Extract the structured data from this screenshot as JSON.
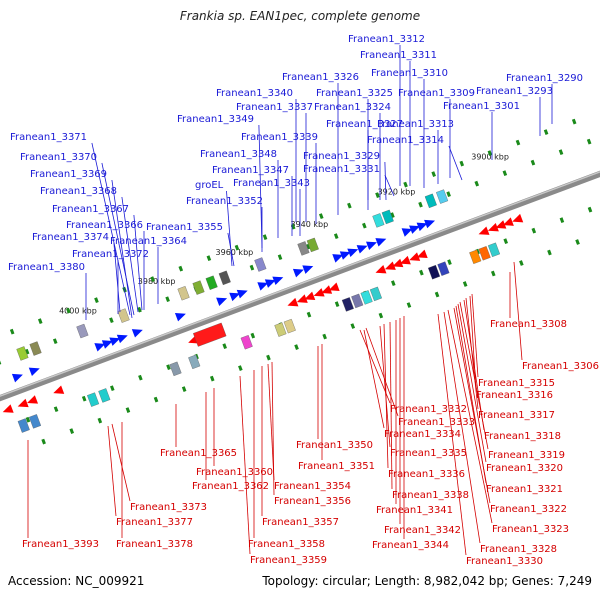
{
  "title": "Frankia sp. EAN1pec, complete genome",
  "footer": {
    "accession": "Accession: NC_009921",
    "summary": "Topology: circular; Length: 8,982,042 bp; Genes: 7,249"
  },
  "colors": {
    "upper_label": "#1a1ad6",
    "lower_label": "#d40000",
    "upper_arrow": "#0019ff",
    "lower_arrow": "#ff0000",
    "axis": "#8a8a8a",
    "tick": "#1a8a1a"
  },
  "ticks": [
    "4000 kbp",
    "3980 kbp",
    "3960 kbp",
    "3940 kbp",
    "3920 kbp",
    "3900 kbp"
  ],
  "upper_labels": [
    "Franean1_3312",
    "Franean1_3311",
    "Franean1_3310",
    "Franean1_3290",
    "Franean1_3326",
    "Franean1_3309",
    "Franean1_3293",
    "Franean1_3340",
    "Franean1_3325",
    "Franean1_3337",
    "Franean1_3324",
    "Franean1_3301",
    "Franean1_3349",
    "Franean1_3327",
    "Franean1_3313",
    "Franean1_3371",
    "Franean1_3339",
    "Franean1_3314",
    "Franean1_3348",
    "Franean1_3329",
    "Franean1_3370",
    "Franean1_3347",
    "Franean1_3331",
    "Franean1_3369",
    "Franean1_3343",
    "groEL",
    "Franean1_3368",
    "Franean1_3352",
    "Franean1_3367",
    "Franean1_3355",
    "Franean1_3366",
    "Franean1_3374",
    "Franean1_3364",
    "Franean1_3372",
    "Franean1_3380"
  ],
  "lower_labels": [
    "Franean1_3308",
    "Franean1_3306",
    "Franean1_3315",
    "Franean1_3316",
    "Franean1_3332",
    "Franean1_3317",
    "Franean1_3333",
    "Franean1_3334",
    "Franean1_3318",
    "Franean1_3350",
    "Franean1_3365",
    "Franean1_3335",
    "Franean1_3319",
    "Franean1_3351",
    "Franean1_3320",
    "Franean1_3360",
    "Franean1_3336",
    "Franean1_3362",
    "Franean1_3354",
    "Franean1_3321",
    "Franean1_3338",
    "Franean1_3356",
    "Franean1_3373",
    "Franean1_3341",
    "Franean1_3322",
    "Franean1_3377",
    "Franean1_3357",
    "Franean1_3342",
    "Franean1_3323",
    "Franean1_3393",
    "Franean1_3378",
    "Franean1_3358",
    "Franean1_3344",
    "Franean1_3328",
    "Franean1_3359",
    "Franean1_3330"
  ]
}
